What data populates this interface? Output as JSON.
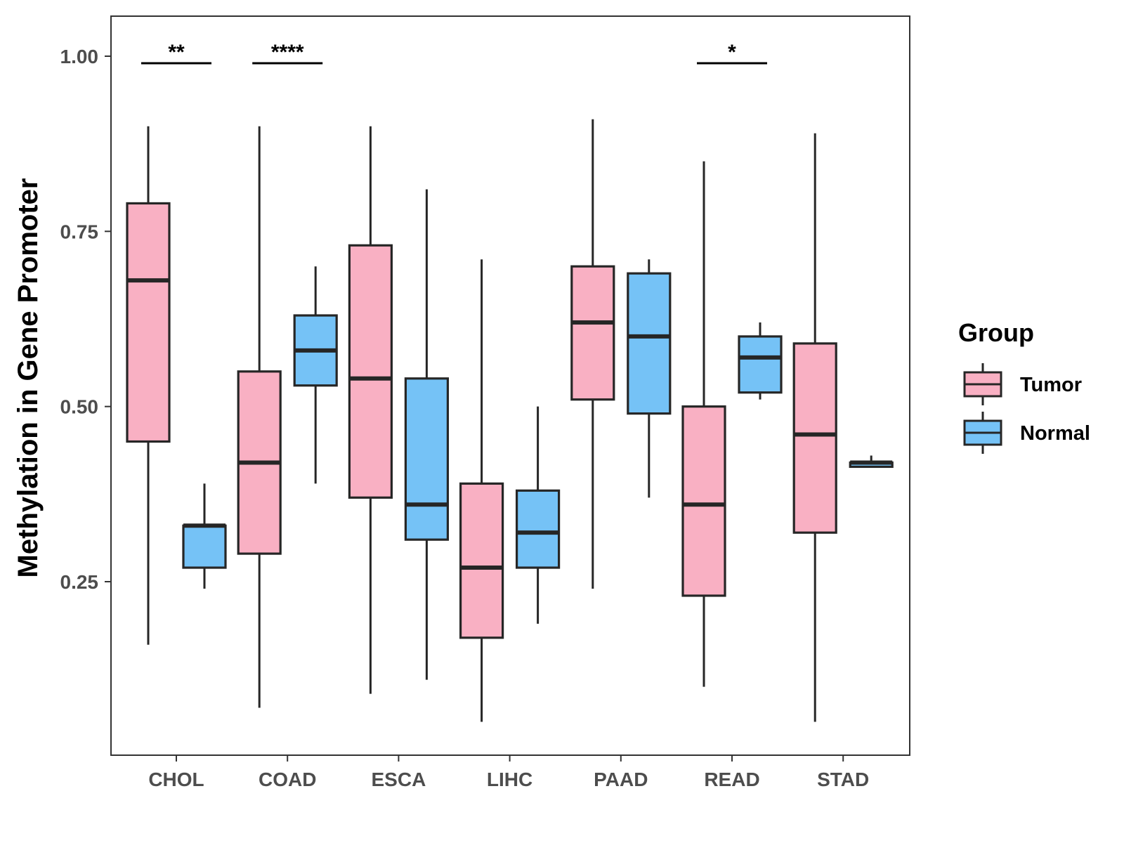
{
  "chart_data": {
    "type": "boxplot",
    "title": "",
    "xlabel": "",
    "ylabel": "Methylation in Gene Promoter",
    "ylim": [
      0.0,
      1.05
    ],
    "yticks": [
      0.25,
      0.5,
      0.75,
      1.0
    ],
    "ytick_labels": [
      "0.25",
      "0.50",
      "0.75",
      "1.00"
    ],
    "grid": false,
    "categories": [
      "CHOL",
      "COAD",
      "ESCA",
      "LIHC",
      "PAAD",
      "READ",
      "STAD"
    ],
    "legend": {
      "title": "Group",
      "position": "right",
      "entries": [
        {
          "name": "Tumor",
          "color": "#F9B0C3"
        },
        {
          "name": "Normal",
          "color": "#75C2F6"
        }
      ]
    },
    "series": [
      {
        "name": "Tumor",
        "color": "#F9B0C3",
        "boxes": [
          {
            "category": "CHOL",
            "min": 0.16,
            "q1": 0.45,
            "median": 0.68,
            "q3": 0.79,
            "max": 0.9
          },
          {
            "category": "COAD",
            "min": 0.07,
            "q1": 0.29,
            "median": 0.42,
            "q3": 0.55,
            "max": 0.9
          },
          {
            "category": "ESCA",
            "min": 0.09,
            "q1": 0.37,
            "median": 0.54,
            "q3": 0.73,
            "max": 0.9
          },
          {
            "category": "LIHC",
            "min": 0.05,
            "q1": 0.17,
            "median": 0.27,
            "q3": 0.39,
            "max": 0.71
          },
          {
            "category": "PAAD",
            "min": 0.24,
            "q1": 0.51,
            "median": 0.62,
            "q3": 0.7,
            "max": 0.91
          },
          {
            "category": "READ",
            "min": 0.1,
            "q1": 0.23,
            "median": 0.36,
            "q3": 0.5,
            "max": 0.85
          },
          {
            "category": "STAD",
            "min": 0.05,
            "q1": 0.32,
            "median": 0.46,
            "q3": 0.59,
            "max": 0.89
          }
        ]
      },
      {
        "name": "Normal",
        "color": "#75C2F6",
        "boxes": [
          {
            "category": "CHOL",
            "min": 0.24,
            "q1": 0.27,
            "median": 0.33,
            "q3": 0.33,
            "max": 0.39
          },
          {
            "category": "COAD",
            "min": 0.39,
            "q1": 0.53,
            "median": 0.58,
            "q3": 0.63,
            "max": 0.7
          },
          {
            "category": "ESCA",
            "min": 0.11,
            "q1": 0.31,
            "median": 0.36,
            "q3": 0.54,
            "max": 0.81
          },
          {
            "category": "LIHC",
            "min": 0.19,
            "q1": 0.27,
            "median": 0.32,
            "q3": 0.38,
            "max": 0.5
          },
          {
            "category": "PAAD",
            "min": 0.37,
            "q1": 0.49,
            "median": 0.6,
            "q3": 0.69,
            "max": 0.71
          },
          {
            "category": "READ",
            "min": 0.51,
            "q1": 0.52,
            "median": 0.57,
            "q3": 0.6,
            "max": 0.62
          },
          {
            "category": "STAD",
            "min": 0.42,
            "q1": 0.42,
            "median": 0.42,
            "q3": 0.42,
            "max": 0.43
          }
        ]
      }
    ],
    "significance": [
      {
        "category": "CHOL",
        "label": "**",
        "y": 0.99
      },
      {
        "category": "COAD",
        "label": "****",
        "y": 0.99
      },
      {
        "category": "READ",
        "label": "*",
        "y": 0.99
      }
    ]
  }
}
